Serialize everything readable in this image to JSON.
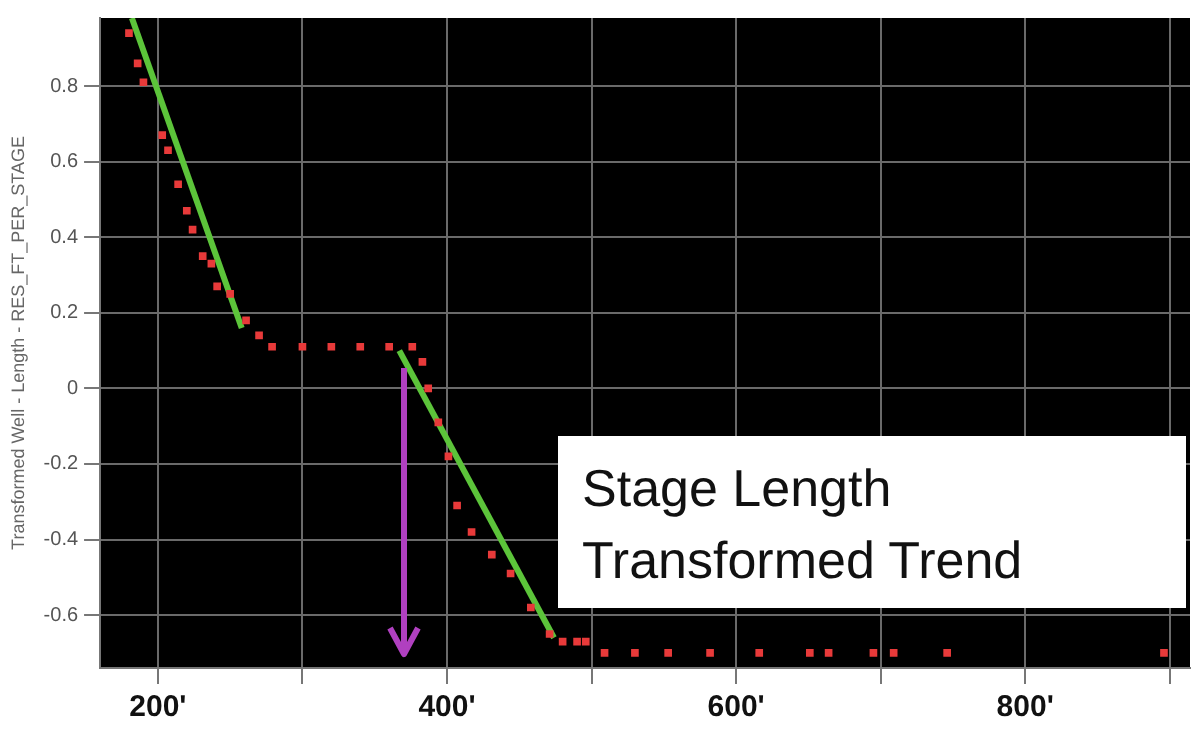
{
  "chart_data": {
    "type": "scatter",
    "ylabel": "Transformed Well - Length - RES_FT_PER_STAGE",
    "annotations": [
      "Stage Length\nTransformed Trend"
    ],
    "xlim": [
      160,
      914
    ],
    "ylim": [
      -0.74,
      0.98
    ],
    "xticks": [
      {
        "value": 200,
        "label": "200'"
      },
      {
        "value": 300,
        "label": null
      },
      {
        "value": 400,
        "label": "400'"
      },
      {
        "value": 500,
        "label": null
      },
      {
        "value": 600,
        "label": "600'"
      },
      {
        "value": 700,
        "label": null
      },
      {
        "value": 800,
        "label": "800'"
      },
      {
        "value": 900,
        "label": null
      }
    ],
    "yticks": [
      -0.6,
      -0.4,
      -0.2,
      0,
      0.2,
      0.4,
      0.6,
      0.8
    ],
    "grid": true,
    "legend": false,
    "series": [
      {
        "type": "scatter",
        "marker": "square",
        "color": "#e83a3a",
        "x": [
          180,
          186,
          190,
          203,
          207,
          214,
          220,
          224,
          231,
          237,
          241,
          250,
          261,
          270,
          279,
          300,
          320,
          340,
          360,
          376,
          383,
          387,
          394,
          401,
          407,
          417,
          431,
          444,
          458,
          471,
          480,
          490,
          496,
          509,
          530,
          553,
          582,
          616,
          651,
          664,
          695,
          709,
          746,
          896
        ],
        "values": [
          0.94,
          0.86,
          0.81,
          0.67,
          0.63,
          0.54,
          0.47,
          0.42,
          0.35,
          0.33,
          0.27,
          0.25,
          0.18,
          0.14,
          0.11,
          0.11,
          0.11,
          0.11,
          0.11,
          0.11,
          0.07,
          0,
          -0.09,
          -0.18,
          -0.31,
          -0.38,
          -0.44,
          -0.49,
          -0.58,
          -0.65,
          -0.67,
          -0.67,
          -0.67,
          -0.7,
          -0.7,
          -0.7,
          -0.7,
          -0.7,
          -0.7,
          -0.7,
          -0.7,
          -0.7,
          -0.7,
          -0.7
        ]
      },
      {
        "type": "line",
        "marker": "none",
        "color": "#5cc43a",
        "x": [
          182,
          258
        ],
        "values": [
          0.98,
          0.16
        ]
      },
      {
        "type": "line",
        "marker": "none",
        "color": "#5cc43a",
        "x": [
          367,
          474
        ],
        "values": [
          0.1,
          -0.66
        ]
      }
    ]
  }
}
